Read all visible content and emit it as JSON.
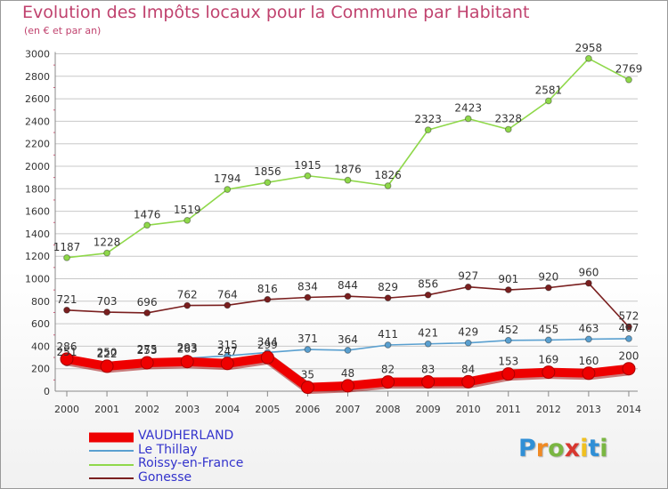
{
  "title": "Evolution des Impôts locaux pour la Commune par Habitant",
  "subtitle": "(en € et par an)",
  "brand": {
    "text": "Proxiti",
    "letter_colors": [
      "#2f8fd6",
      "#f08a24",
      "#7ab642",
      "#d8372f",
      "#f0c020",
      "#2f8fd6",
      "#7ab642"
    ]
  },
  "chart_data": {
    "type": "line",
    "x": [
      "2000",
      "2001",
      "2002",
      "2003",
      "2004",
      "2005",
      "2006",
      "2007",
      "2008",
      "2009",
      "2010",
      "2011",
      "2012",
      "2013",
      "2014"
    ],
    "y_ticks": [
      "0",
      "200",
      "400",
      "600",
      "800",
      "1000",
      "1200",
      "1400",
      "1600",
      "1800",
      "2000",
      "2200",
      "2400",
      "2600",
      "2800",
      "3000"
    ],
    "ylim": [
      0,
      3000
    ],
    "grid": "y",
    "legend_position": "bottom-left",
    "series": [
      {
        "name": "Gonesse",
        "color": "#7a1f1f",
        "values": [
          721,
          703,
          696,
          762,
          764,
          816,
          834,
          844,
          829,
          856,
          927,
          901,
          920,
          960,
          572
        ],
        "labels": [
          "721",
          "703",
          "696",
          "762",
          "764",
          "816",
          "834",
          "844",
          "829",
          "856",
          "927",
          "901",
          "920",
          "960",
          "572"
        ]
      },
      {
        "name": "Roissy-en-France",
        "color": "#8fd84a",
        "values": [
          1187,
          1228,
          1476,
          1519,
          1794,
          1856,
          1915,
          1876,
          1826,
          2323,
          2423,
          2328,
          2581,
          2958,
          2769
        ],
        "labels": [
          "1187",
          "1228",
          "1476",
          "1519",
          "1794",
          "1856",
          "1915",
          "1876",
          "1826",
          "2323",
          "2423",
          "2328",
          "2581",
          "2958",
          "2769"
        ]
      },
      {
        "name": "Le Thillay",
        "color": "#5aa0d0",
        "values": [
          251,
          250,
          275,
          293,
          315,
          344,
          371,
          364,
          411,
          421,
          429,
          452,
          455,
          463,
          467
        ],
        "labels": [
          "251",
          "250",
          "275",
          "293",
          "315",
          "344",
          "371",
          "364",
          "411",
          "421",
          "429",
          "452",
          "455",
          "463",
          "467"
        ]
      },
      {
        "name": "VAUDHERLAND",
        "color": "#ee0000",
        "values": [
          286,
          222,
          253,
          263,
          247,
          299,
          35,
          48,
          82,
          83,
          84,
          153,
          169,
          160,
          200
        ],
        "labels": [
          "286",
          "222",
          "253",
          "263",
          "247",
          "299",
          "35",
          "48",
          "82",
          "83",
          "84",
          "153",
          "169",
          "160",
          "200"
        ]
      }
    ],
    "legend": [
      {
        "name": "VAUDHERLAND",
        "color": "#ee0000"
      },
      {
        "name": "Le Thillay",
        "color": "#5aa0d0"
      },
      {
        "name": "Roissy-en-France",
        "color": "#8fd84a"
      },
      {
        "name": "Gonesse",
        "color": "#7a1f1f"
      }
    ]
  }
}
